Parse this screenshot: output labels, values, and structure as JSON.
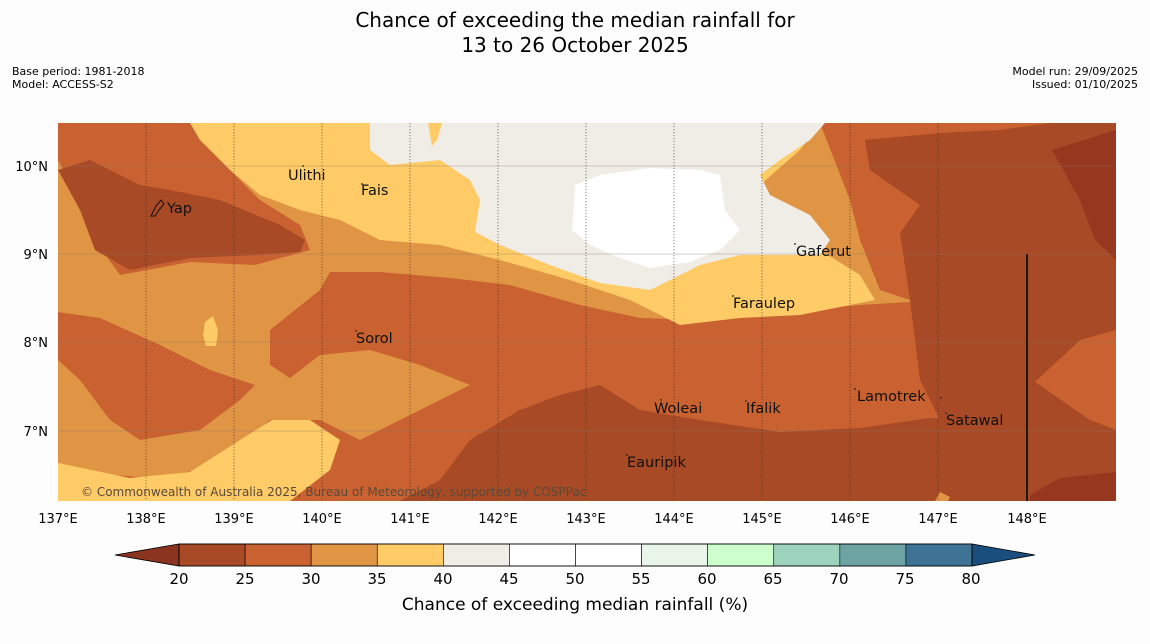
{
  "title": {
    "line1": "Chance of exceeding the median rainfall for",
    "line2": "13 to 26 October 2025"
  },
  "meta": {
    "base_period": "Base period: 1981-2018",
    "model": "Model: ACCESS-S2",
    "model_run": "Model run: 29/09/2025",
    "issued": "Issued: 01/10/2025"
  },
  "map": {
    "lon_ticks": [
      "137°E",
      "138°E",
      "139°E",
      "140°E",
      "141°E",
      "142°E",
      "143°E",
      "144°E",
      "145°E",
      "146°E",
      "147°E",
      "148°E"
    ],
    "lat_ticks": [
      "10°N",
      "9°N",
      "8°N",
      "7°N"
    ],
    "places": [
      {
        "name": "Yap"
      },
      {
        "name": "Ulithi"
      },
      {
        "name": "Fais"
      },
      {
        "name": "Gaferut"
      },
      {
        "name": "Faraulep"
      },
      {
        "name": "Sorol"
      },
      {
        "name": "Woleai"
      },
      {
        "name": "Ifalik"
      },
      {
        "name": "Lamotrek"
      },
      {
        "name": "Satawal"
      },
      {
        "name": "Eauripik"
      }
    ],
    "copyright": "© Commonwealth of Australia 2025, Bureau of Meteorology, supported by COSPPac"
  },
  "colorbar": {
    "title": "Chance of exceeding median rainfall (%)",
    "labels": [
      "20",
      "25",
      "30",
      "35",
      "40",
      "45",
      "50",
      "55",
      "60",
      "65",
      "70",
      "75",
      "80"
    ],
    "colors": [
      "#a84a25",
      "#c96130",
      "#e09545",
      "#ffcb66",
      "#f0ece6",
      "#ffffff",
      "#ffffff",
      "#e8f5e8",
      "#ccffcc",
      "#9dd3bd",
      "#6da3a3",
      "#3f7396"
    ],
    "under_color": "#8b3520",
    "over_color": "#1a4e7c"
  },
  "field_colors": {
    "c20": "#a84a25",
    "c25": "#c96130",
    "c30": "#e09545",
    "c35": "#ffcb66",
    "c40": "#f0ece6",
    "c45": "#ffffff",
    "c15": "#973720"
  }
}
